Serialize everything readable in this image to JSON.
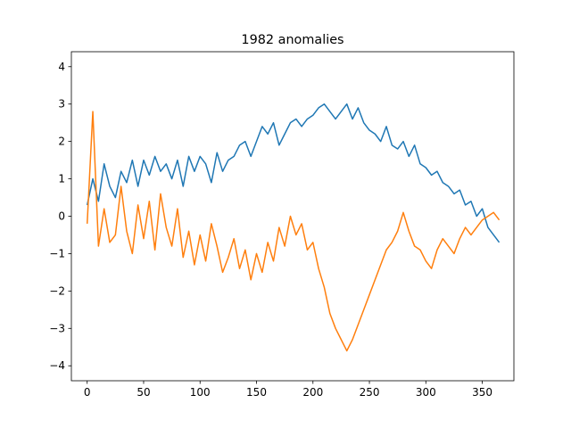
{
  "chart_data": {
    "type": "line",
    "title": "1982 anomalies",
    "xlabel": "",
    "ylabel": "",
    "xlim": [
      -14,
      378
    ],
    "ylim": [
      -4.4,
      4.4
    ],
    "x_ticks": [
      0,
      50,
      100,
      150,
      200,
      250,
      300,
      350
    ],
    "y_ticks": [
      -4,
      -3,
      -2,
      -1,
      0,
      1,
      2,
      3,
      4
    ],
    "grid": false,
    "legend": "none",
    "x_step": 5,
    "series": [
      {
        "color": "#1f77b4",
        "x": [
          0,
          5,
          10,
          15,
          20,
          25,
          30,
          35,
          40,
          45,
          50,
          55,
          60,
          65,
          70,
          75,
          80,
          85,
          90,
          95,
          100,
          105,
          110,
          115,
          120,
          125,
          130,
          135,
          140,
          145,
          150,
          155,
          160,
          165,
          170,
          175,
          180,
          185,
          190,
          195,
          200,
          205,
          210,
          215,
          220,
          225,
          230,
          235,
          240,
          245,
          250,
          255,
          260,
          265,
          270,
          275,
          280,
          285,
          290,
          295,
          300,
          305,
          310,
          315,
          320,
          325,
          330,
          335,
          340,
          345,
          350,
          355,
          360,
          365
        ],
        "y": [
          0.3,
          1.0,
          0.4,
          1.4,
          0.8,
          0.5,
          1.2,
          0.9,
          1.5,
          0.8,
          1.5,
          1.1,
          1.6,
          1.2,
          1.4,
          1.0,
          1.5,
          0.8,
          1.6,
          1.2,
          1.6,
          1.4,
          0.9,
          1.7,
          1.2,
          1.5,
          1.6,
          1.9,
          2.0,
          1.6,
          2.0,
          2.4,
          2.2,
          2.5,
          1.9,
          2.2,
          2.5,
          2.6,
          2.4,
          2.6,
          2.7,
          2.9,
          3.0,
          2.8,
          2.6,
          2.8,
          3.0,
          2.6,
          2.9,
          2.5,
          2.3,
          2.2,
          2.0,
          2.4,
          1.9,
          1.8,
          2.0,
          1.6,
          1.9,
          1.4,
          1.3,
          1.1,
          1.2,
          0.9,
          0.8,
          0.6,
          0.7,
          0.3,
          0.4,
          0.0,
          0.2,
          -0.3,
          -0.5,
          -0.7
        ]
      },
      {
        "color": "#ff7f0e",
        "x": [
          0,
          5,
          10,
          15,
          20,
          25,
          30,
          35,
          40,
          45,
          50,
          55,
          60,
          65,
          70,
          75,
          80,
          85,
          90,
          95,
          100,
          105,
          110,
          115,
          120,
          125,
          130,
          135,
          140,
          145,
          150,
          155,
          160,
          165,
          170,
          175,
          180,
          185,
          190,
          195,
          200,
          205,
          210,
          215,
          220,
          225,
          230,
          235,
          240,
          245,
          250,
          255,
          260,
          265,
          270,
          275,
          280,
          285,
          290,
          295,
          300,
          305,
          310,
          315,
          320,
          325,
          330,
          335,
          340,
          345,
          350,
          355,
          360,
          365
        ],
        "y": [
          -0.2,
          2.8,
          -0.8,
          0.2,
          -0.7,
          -0.5,
          0.8,
          -0.4,
          -1.0,
          0.3,
          -0.6,
          0.4,
          -0.9,
          0.6,
          -0.3,
          -0.8,
          0.2,
          -1.1,
          -0.4,
          -1.3,
          -0.5,
          -1.2,
          -0.2,
          -0.8,
          -1.5,
          -1.1,
          -0.6,
          -1.4,
          -0.9,
          -1.7,
          -1.0,
          -1.5,
          -0.7,
          -1.2,
          -0.3,
          -0.8,
          0.0,
          -0.5,
          -0.2,
          -0.9,
          -0.7,
          -1.4,
          -1.9,
          -2.6,
          -3.0,
          -3.3,
          -3.6,
          -3.3,
          -2.9,
          -2.5,
          -2.1,
          -1.7,
          -1.3,
          -0.9,
          -0.7,
          -0.4,
          0.1,
          -0.4,
          -0.8,
          -0.9,
          -1.2,
          -1.4,
          -0.9,
          -0.6,
          -0.8,
          -1.0,
          -0.6,
          -0.3,
          -0.5,
          -0.3,
          -0.1,
          0.0,
          0.1,
          -0.1
        ]
      }
    ]
  }
}
